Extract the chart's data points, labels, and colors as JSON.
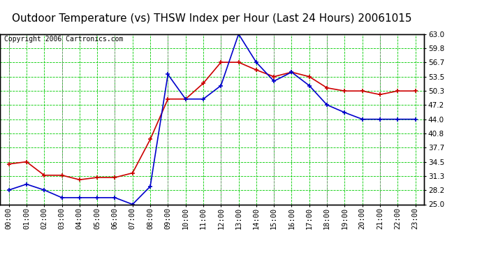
{
  "title": "Outdoor Temperature (vs) THSW Index per Hour (Last 24 Hours) 20061015",
  "copyright": "Copyright 2006 Cartronics.com",
  "hours": [
    "00:00",
    "01:00",
    "02:00",
    "03:00",
    "04:00",
    "05:00",
    "06:00",
    "07:00",
    "08:00",
    "09:00",
    "10:00",
    "11:00",
    "12:00",
    "13:00",
    "14:00",
    "15:00",
    "16:00",
    "17:00",
    "18:00",
    "19:00",
    "20:00",
    "21:00",
    "22:00",
    "23:00"
  ],
  "outdoor_temp": [
    34.0,
    34.5,
    31.5,
    31.5,
    30.5,
    31.0,
    31.0,
    32.0,
    39.5,
    48.5,
    48.5,
    52.0,
    56.7,
    56.7,
    55.0,
    53.5,
    54.5,
    53.5,
    51.0,
    50.3,
    50.3,
    49.5,
    50.3,
    50.3
  ],
  "thsw_index": [
    28.2,
    29.5,
    28.2,
    26.5,
    26.5,
    26.5,
    26.5,
    25.0,
    29.0,
    54.0,
    48.5,
    48.5,
    51.5,
    63.0,
    56.7,
    52.5,
    54.5,
    51.5,
    47.2,
    45.5,
    44.0,
    44.0,
    44.0,
    44.0
  ],
  "temp_color": "#cc0000",
  "thsw_color": "#0000cc",
  "background_color": "#ffffff",
  "plot_bg_color": "#ffffff",
  "grid_color": "#00cc00",
  "title_color": "#000000",
  "ylim": [
    25.0,
    63.0
  ],
  "yticks": [
    25.0,
    28.2,
    31.3,
    34.5,
    37.7,
    40.8,
    44.0,
    47.2,
    50.3,
    53.5,
    56.7,
    59.8,
    63.0
  ],
  "title_fontsize": 11,
  "tick_fontsize": 7.5,
  "copyright_fontsize": 7
}
